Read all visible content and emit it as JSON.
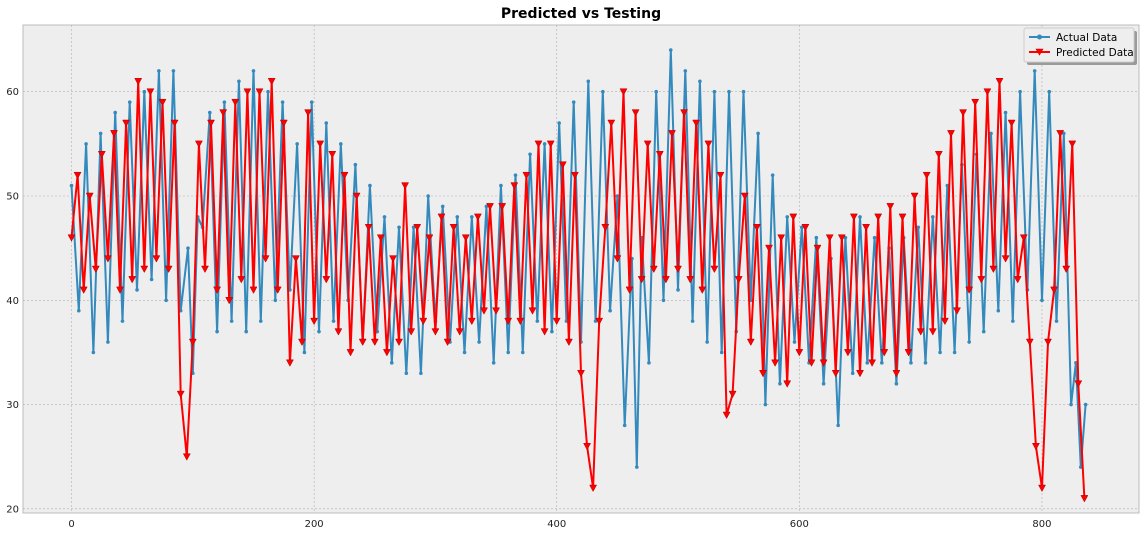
{
  "chart_data": {
    "type": "line",
    "title": "Predicted vs Testing",
    "xlabel": "",
    "ylabel": "",
    "xlim": [
      -40,
      880
    ],
    "ylim": [
      19.6,
      66.4
    ],
    "xticks": [
      0,
      200,
      400,
      600,
      800
    ],
    "yticks": [
      20,
      30,
      40,
      50,
      60
    ],
    "grid": true,
    "legend_position": "top-right",
    "colors": {
      "actual": "#348abd",
      "predicted": "#ff0000",
      "background": "#eeeeee",
      "grid": "#b0b0b0"
    },
    "series": [
      {
        "name": "Actual Data",
        "marker": "dot",
        "x": [
          0,
          6,
          12,
          18,
          24,
          30,
          36,
          42,
          48,
          54,
          60,
          66,
          72,
          78,
          84,
          90,
          96,
          100,
          104,
          108,
          114,
          120,
          126,
          132,
          138,
          144,
          150,
          156,
          162,
          168,
          174,
          180,
          186,
          192,
          198,
          204,
          210,
          216,
          222,
          228,
          234,
          240,
          246,
          252,
          258,
          264,
          270,
          276,
          282,
          288,
          294,
          300,
          306,
          312,
          318,
          324,
          330,
          336,
          342,
          348,
          354,
          360,
          366,
          372,
          378,
          384,
          390,
          396,
          402,
          408,
          414,
          420,
          426,
          432,
          438,
          444,
          450,
          456,
          462,
          466,
          470,
          476,
          482,
          488,
          494,
          500,
          506,
          512,
          518,
          524,
          530,
          536,
          542,
          548,
          554,
          560,
          566,
          572,
          578,
          584,
          590,
          596,
          602,
          608,
          614,
          620,
          626,
          632,
          638,
          644,
          650,
          656,
          662,
          668,
          674,
          680,
          686,
          692,
          698,
          704,
          710,
          716,
          722,
          728,
          734,
          740,
          746,
          752,
          758,
          764,
          770,
          776,
          782,
          788,
          794,
          800,
          806,
          812,
          818,
          824,
          828,
          832,
          836
        ],
        "y": [
          51,
          39,
          55,
          35,
          56,
          36,
          58,
          38,
          59,
          41,
          60,
          42,
          62,
          40,
          62,
          39,
          45,
          33,
          48,
          47,
          58,
          37,
          59,
          38,
          61,
          37,
          62,
          38,
          60,
          40,
          59,
          41,
          55,
          35,
          59,
          37,
          57,
          38,
          55,
          40,
          53,
          36,
          51,
          37,
          48,
          34,
          47,
          33,
          47,
          33,
          50,
          38,
          49,
          36,
          48,
          35,
          48,
          36,
          49,
          34,
          51,
          35,
          52,
          35,
          54,
          38,
          55,
          37,
          57,
          38,
          59,
          36,
          61,
          38,
          60,
          39,
          50,
          28,
          44,
          24,
          46,
          34,
          60,
          40,
          64,
          41,
          62,
          38,
          61,
          36,
          60,
          35,
          60,
          37,
          60,
          40,
          56,
          30,
          52,
          32,
          48,
          36,
          47,
          34,
          46,
          32,
          44,
          28,
          46,
          33,
          48,
          34,
          46,
          34,
          45,
          32,
          46,
          34,
          47,
          34,
          48,
          35,
          51,
          35,
          53,
          36,
          54,
          37,
          56,
          39,
          58,
          38,
          60,
          41,
          62,
          40,
          60,
          38,
          56,
          30,
          34,
          24,
          30
        ],
        "values_count": 143
      },
      {
        "name": "Predicted Data",
        "marker": "triangle-down",
        "x": [
          0,
          5,
          10,
          15,
          20,
          25,
          30,
          35,
          40,
          45,
          50,
          55,
          60,
          65,
          70,
          75,
          80,
          85,
          90,
          95,
          100,
          105,
          110,
          115,
          120,
          125,
          130,
          135,
          140,
          145,
          150,
          155,
          160,
          165,
          170,
          175,
          180,
          185,
          190,
          195,
          200,
          205,
          210,
          215,
          220,
          225,
          230,
          235,
          240,
          245,
          250,
          255,
          260,
          265,
          270,
          275,
          280,
          285,
          290,
          295,
          300,
          305,
          310,
          315,
          320,
          325,
          330,
          335,
          340,
          345,
          350,
          355,
          360,
          365,
          370,
          375,
          380,
          385,
          390,
          395,
          400,
          405,
          410,
          415,
          420,
          425,
          430,
          435,
          440,
          445,
          450,
          455,
          460,
          465,
          470,
          475,
          480,
          485,
          490,
          495,
          500,
          505,
          510,
          515,
          520,
          525,
          530,
          535,
          540,
          545,
          550,
          555,
          560,
          565,
          570,
          575,
          580,
          585,
          590,
          595,
          600,
          605,
          610,
          615,
          620,
          625,
          630,
          635,
          640,
          645,
          650,
          655,
          660,
          665,
          670,
          675,
          680,
          685,
          690,
          695,
          700,
          705,
          710,
          715,
          720,
          725,
          730,
          735,
          740,
          745,
          750,
          755,
          760,
          765,
          770,
          775,
          780,
          785,
          790,
          795,
          800,
          805,
          810,
          815,
          820,
          825,
          830,
          835
        ],
        "y": [
          46,
          52,
          41,
          50,
          43,
          54,
          44,
          56,
          41,
          57,
          42,
          61,
          43,
          60,
          44,
          59,
          43,
          57,
          31,
          25,
          36,
          55,
          43,
          57,
          41,
          58,
          40,
          59,
          42,
          60,
          41,
          60,
          44,
          61,
          41,
          57,
          34,
          44,
          36,
          58,
          38,
          55,
          42,
          54,
          37,
          52,
          35,
          50,
          36,
          47,
          36,
          46,
          35,
          44,
          36,
          51,
          37,
          47,
          38,
          46,
          37,
          48,
          36,
          47,
          37,
          46,
          38,
          48,
          39,
          49,
          39,
          49,
          38,
          51,
          38,
          52,
          39,
          55,
          37,
          55,
          38,
          53,
          36,
          52,
          33,
          26,
          22,
          38,
          47,
          57,
          44,
          60,
          41,
          58,
          42,
          55,
          43,
          54,
          42,
          56,
          43,
          58,
          42,
          57,
          41,
          55,
          43,
          52,
          29,
          31,
          42,
          50,
          36,
          47,
          33,
          45,
          34,
          46,
          32,
          48,
          35,
          47,
          34,
          45,
          34,
          46,
          33,
          46,
          35,
          48,
          33,
          47,
          34,
          48,
          35,
          49,
          33,
          48,
          35,
          50,
          37,
          52,
          37,
          54,
          38,
          56,
          39,
          58,
          41,
          59,
          42,
          60,
          43,
          61,
          44,
          57,
          42,
          46,
          36,
          26,
          22,
          36,
          41,
          56,
          43,
          55,
          32,
          21
        ],
        "values_count": 168
      }
    ]
  }
}
